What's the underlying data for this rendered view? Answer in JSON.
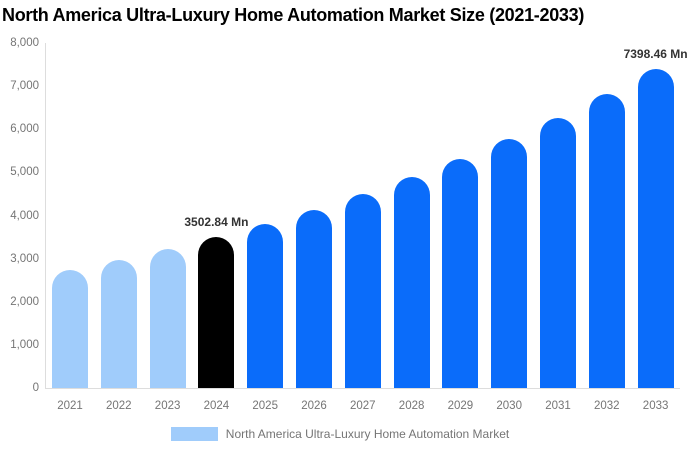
{
  "chart": {
    "title": "North America Ultra-Luxury Home Automation Market Size (2021-2033)",
    "legend": {
      "label": "North America Ultra-Luxury Home Automation Market",
      "swatch_color": "#A0CCFB"
    }
  },
  "colors": {
    "bar_historical": "#A0CCFB",
    "bar_highlight": "#000000",
    "bar_forecast": "#0A6CFA",
    "axis_line": "#DDDDDD",
    "axis_text": "#757575",
    "title_text": "#000000",
    "data_label_text": "#333333",
    "background": "#FFFFFF"
  },
  "chart_data": {
    "type": "bar",
    "title": "North America Ultra-Luxury Home Automation Market Size (2021-2033)",
    "unit": "Mn",
    "categories": [
      "2021",
      "2022",
      "2023",
      "2024",
      "2025",
      "2026",
      "2027",
      "2028",
      "2029",
      "2030",
      "2031",
      "2032",
      "2033"
    ],
    "values": [
      2730,
      2967,
      3224,
      3502.84,
      3806,
      4136,
      4494,
      4884,
      5307,
      5766,
      6266,
      6808,
      7398.46
    ],
    "bar_colors": [
      "#A0CCFB",
      "#A0CCFB",
      "#A0CCFB",
      "#000000",
      "#0A6CFA",
      "#0A6CFA",
      "#0A6CFA",
      "#0A6CFA",
      "#0A6CFA",
      "#0A6CFA",
      "#0A6CFA",
      "#0A6CFA",
      "#0A6CFA"
    ],
    "data_labels": [
      {
        "category": "2024",
        "text": "3502.84 Mn"
      },
      {
        "category": "2033",
        "text": "7398.46 Mn"
      }
    ],
    "ylim": [
      0,
      8000
    ],
    "ytick_interval": 1000,
    "ytick_labels": [
      "0",
      "1,000",
      "2,000",
      "3,000",
      "4,000",
      "5,000",
      "6,000",
      "7,000",
      "8,000"
    ],
    "grid": false,
    "legend_position": "bottom-center",
    "legend_entries": [
      "North America Ultra-Luxury Home Automation Market"
    ]
  }
}
